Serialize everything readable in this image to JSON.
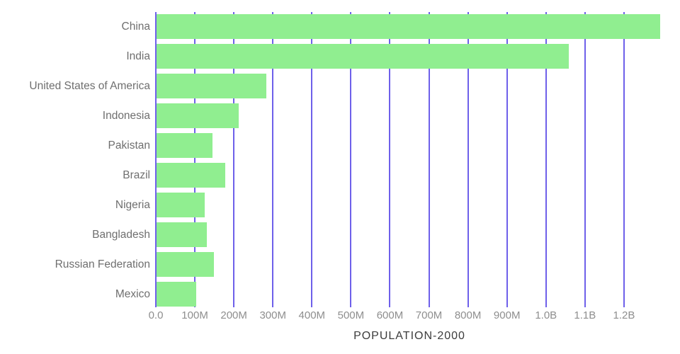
{
  "chart_data": {
    "type": "bar",
    "orientation": "horizontal",
    "title": "POPULATION-2000",
    "categories": [
      "China",
      "India",
      "United States of America",
      "Indonesia",
      "Pakistan",
      "Brazil",
      "Nigeria",
      "Bangladesh",
      "Russian Federation",
      "Mexico"
    ],
    "values_millions": [
      1291,
      1056,
      282,
      211,
      143,
      176,
      123,
      129,
      147,
      101
    ],
    "x_tick_labels": [
      "0.0",
      "100M",
      "200M",
      "300M",
      "400M",
      "500M",
      "600M",
      "700M",
      "800M",
      "900M",
      "1.0B",
      "1.1B",
      "1.2B"
    ],
    "x_tick_values_millions": [
      0,
      100,
      200,
      300,
      400,
      500,
      600,
      700,
      800,
      900,
      1000,
      1100,
      1200
    ],
    "xlim_millions": [
      0,
      1300
    ],
    "grid": "vertical-gridlines-behind-bars",
    "legend": "none",
    "colors": {
      "bar": "#90ee90",
      "gridline": "#6e60ea",
      "category_label": "#6f6f6f",
      "tick_label": "#8e8e8e",
      "title": "#3c3c3c",
      "background": "#ffffff"
    }
  }
}
